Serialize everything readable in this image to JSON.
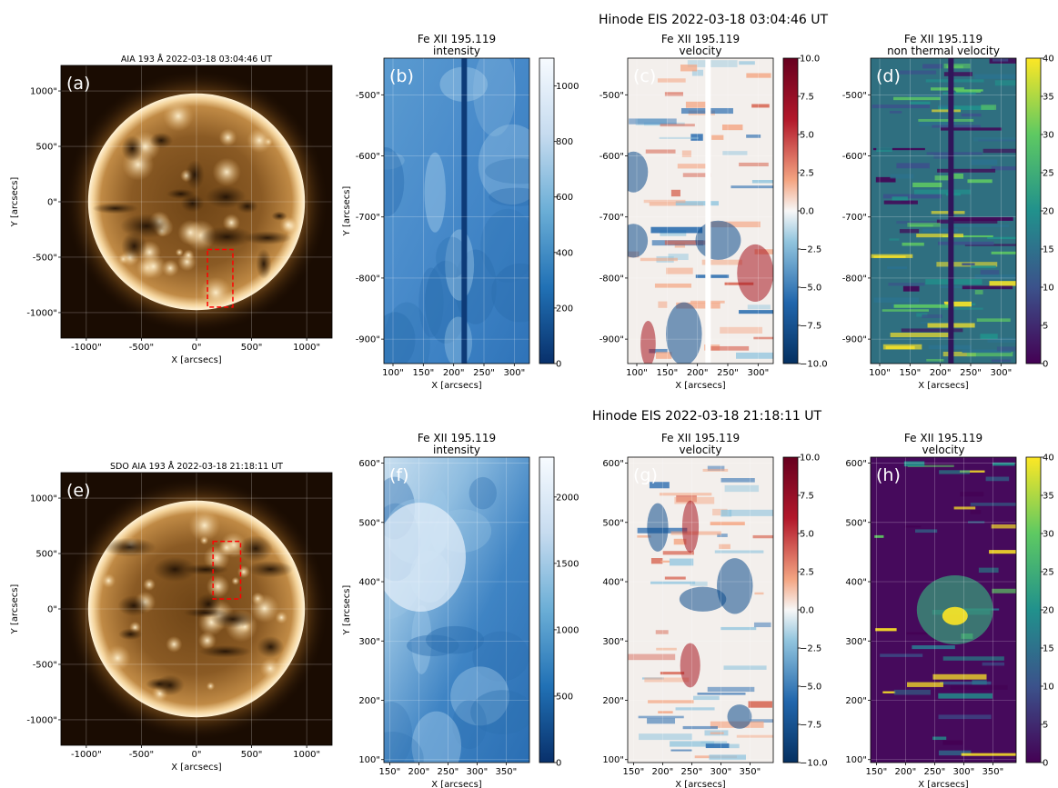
{
  "row_titles": [
    "Hinode EIS 2022-03-18 03:04:46 UT",
    "Hinode EIS 2022-03-18 21:18:11 UT"
  ],
  "colors": {
    "aia_dark": "#1a0c02",
    "aia_mid": "#7a4f1e",
    "aia_bright": "#f6d9a4",
    "box_red": "#ff0000",
    "blues_dark": "#08306b",
    "blues_light": "#f7fbff",
    "rdbu_neg": "#053061",
    "rdbu_pos": "#67001f",
    "viridis_low": "#440154",
    "viridis_high": "#fde725"
  },
  "chart_data": [
    {
      "type": "heatmap",
      "panel_label": "(a)",
      "title": "AIA 193 Å 2022-03-18 03:04:46 UT",
      "subtitle": "",
      "xlabel": "X [arcsecs]",
      "ylabel": "Y [arcsecs]",
      "xlim": [
        -1230,
        1230
      ],
      "ylim": [
        -1230,
        1230
      ],
      "x_ticks": [
        -1000,
        -500,
        0,
        500,
        1000
      ],
      "y_ticks": [
        1000,
        500,
        0,
        -500,
        -1000
      ],
      "x_tick_labels": [
        "-1000\"",
        "-500\"",
        "0\"",
        "500\"",
        "1000\""
      ],
      "y_tick_labels": [
        "1000\"",
        "500\"",
        "0\"",
        "-500\"",
        "-1000\""
      ],
      "grid": true,
      "box": {
        "x": [
          100,
          330
        ],
        "y": [
          -950,
          -430
        ]
      }
    },
    {
      "type": "heatmap",
      "panel_label": "(b)",
      "title": "Fe XII 195.119",
      "subtitle": "intensity",
      "xlabel": "X [arcsecs]",
      "ylabel": "Y [arcsecs]",
      "xlim": [
        85,
        325
      ],
      "ylim": [
        -940,
        -440
      ],
      "x_ticks": [
        100,
        150,
        200,
        250,
        300
      ],
      "y_ticks": [
        -500,
        -600,
        -700,
        -800,
        -900
      ],
      "x_tick_labels": [
        "100\"",
        "150\"",
        "200\"",
        "250\"",
        "300\""
      ],
      "y_tick_labels": [
        "-500\"",
        "-600\"",
        "-700\"",
        "-800\"",
        "-900\""
      ],
      "grid": true,
      "colorbar": {
        "cmap": "blues",
        "range": [
          0,
          1100
        ],
        "ticks": [
          0,
          200,
          400,
          600,
          800,
          1000
        ],
        "tick_labels": [
          "0",
          "200",
          "400",
          "600",
          "800",
          "1000"
        ]
      }
    },
    {
      "type": "heatmap",
      "panel_label": "(c)",
      "title": "Fe XII 195.119",
      "subtitle": "velocity",
      "xlabel": "X [arcsecs]",
      "ylabel": "",
      "xlim": [
        85,
        325
      ],
      "ylim": [
        -940,
        -440
      ],
      "x_ticks": [
        100,
        150,
        200,
        250,
        300
      ],
      "y_ticks": [
        -500,
        -600,
        -700,
        -800,
        -900
      ],
      "x_tick_labels": [
        "100\"",
        "150\"",
        "200\"",
        "250\"",
        "300\""
      ],
      "y_tick_labels": [
        "-500\"",
        "-600\"",
        "-700\"",
        "-800\"",
        "-900\""
      ],
      "grid": true,
      "colorbar": {
        "cmap": "rdbu",
        "range": [
          -10,
          10
        ],
        "ticks": [
          10,
          7.5,
          5,
          2.5,
          0,
          -2.5,
          -5,
          -7.5,
          -10
        ],
        "tick_labels": [
          "10.0",
          "7.5",
          "5.0",
          "2.5",
          "0.0",
          "−2.5",
          "−5.0",
          "−7.5",
          "−10.0"
        ]
      }
    },
    {
      "type": "heatmap",
      "panel_label": "(d)",
      "title": "Fe XII 195.119",
      "subtitle": "non thermal velocity",
      "xlabel": "X [arcsecs]",
      "ylabel": "",
      "xlim": [
        85,
        325
      ],
      "ylim": [
        -940,
        -440
      ],
      "x_ticks": [
        100,
        150,
        200,
        250,
        300
      ],
      "y_ticks": [
        -500,
        -600,
        -700,
        -800,
        -900
      ],
      "x_tick_labels": [
        "100\"",
        "150\"",
        "200\"",
        "250\"",
        "300\""
      ],
      "y_tick_labels": [
        "-500\"",
        "-600\"",
        "-700\"",
        "-800\"",
        "-900\""
      ],
      "grid": true,
      "colorbar": {
        "cmap": "viridis",
        "range": [
          0,
          40
        ],
        "ticks": [
          0,
          5,
          10,
          15,
          20,
          25,
          30,
          35,
          40
        ],
        "tick_labels": [
          "0",
          "5",
          "10",
          "15",
          "20",
          "25",
          "30",
          "35",
          "40"
        ]
      }
    },
    {
      "type": "heatmap",
      "panel_label": "(e)",
      "title": "SDO AIA 193 Å 2022-03-18 21:18:11 UT",
      "subtitle": "",
      "xlabel": "X [arcsecs]",
      "ylabel": "Y [arcsecs]",
      "xlim": [
        -1230,
        1230
      ],
      "ylim": [
        -1230,
        1230
      ],
      "x_ticks": [
        -1000,
        -500,
        0,
        500,
        1000
      ],
      "y_ticks": [
        1000,
        500,
        0,
        -500,
        -1000
      ],
      "x_tick_labels": [
        "-1000\"",
        "-500\"",
        "0\"",
        "500\"",
        "1000\""
      ],
      "y_tick_labels": [
        "1000\"",
        "500\"",
        "0\"",
        "-500\"",
        "-1000\""
      ],
      "grid": true,
      "box": {
        "x": [
          150,
          400
        ],
        "y": [
          90,
          610
        ]
      }
    },
    {
      "type": "heatmap",
      "panel_label": "(f)",
      "title": "Fe XII 195.119",
      "subtitle": "intensity",
      "xlabel": "X [arcsecs]",
      "ylabel": "Y [arcsecs]",
      "xlim": [
        140,
        390
      ],
      "ylim": [
        95,
        610
      ],
      "x_ticks": [
        150,
        200,
        250,
        300,
        350
      ],
      "y_ticks": [
        600,
        500,
        400,
        300,
        200,
        100
      ],
      "x_tick_labels": [
        "150\"",
        "200\"",
        "250\"",
        "300\"",
        "350\""
      ],
      "y_tick_labels": [
        "600\"",
        "500\"",
        "400\"",
        "300\"",
        "200\"",
        "100\""
      ],
      "grid": true,
      "colorbar": {
        "cmap": "blues",
        "range": [
          0,
          2300
        ],
        "ticks": [
          0,
          500,
          1000,
          1500,
          2000
        ],
        "tick_labels": [
          "0",
          "500",
          "1000",
          "1500",
          "2000"
        ]
      }
    },
    {
      "type": "heatmap",
      "panel_label": "(g)",
      "title": "Fe XII 195.119",
      "subtitle": "velocity",
      "xlabel": "X [arcsecs]",
      "ylabel": "",
      "xlim": [
        140,
        390
      ],
      "ylim": [
        95,
        610
      ],
      "x_ticks": [
        150,
        200,
        250,
        300,
        350
      ],
      "y_ticks": [
        600,
        500,
        400,
        300,
        200,
        100
      ],
      "x_tick_labels": [
        "150\"",
        "200\"",
        "250\"",
        "300\"",
        "350\""
      ],
      "y_tick_labels": [
        "600\"",
        "500\"",
        "400\"",
        "300\"",
        "200\"",
        "100\""
      ],
      "grid": true,
      "colorbar": {
        "cmap": "rdbu",
        "range": [
          -10,
          10
        ],
        "ticks": [
          10,
          7.5,
          5,
          2.5,
          0,
          -2.5,
          -5,
          -7.5,
          -10
        ],
        "tick_labels": [
          "10.0",
          "7.5",
          "5.0",
          "2.5",
          "0.0",
          "−2.5",
          "−5.0",
          "−7.5",
          "−10.0"
        ]
      }
    },
    {
      "type": "heatmap",
      "panel_label": "(h)",
      "title": "Fe XII 195.119",
      "subtitle": "velocity",
      "xlabel": "X [arcsecs]",
      "ylabel": "",
      "xlim": [
        140,
        390
      ],
      "ylim": [
        95,
        610
      ],
      "x_ticks": [
        150,
        200,
        250,
        300,
        350
      ],
      "y_ticks": [
        600,
        500,
        400,
        300,
        200,
        100
      ],
      "x_tick_labels": [
        "150\"",
        "200\"",
        "250\"",
        "300\"",
        "350\""
      ],
      "y_tick_labels": [
        "600\"",
        "500\"",
        "400\"",
        "300\"",
        "200\"",
        "100\""
      ],
      "grid": true,
      "colorbar": {
        "cmap": "viridis",
        "range": [
          0,
          40
        ],
        "ticks": [
          0,
          5,
          10,
          15,
          20,
          25,
          30,
          35,
          40
        ],
        "tick_labels": [
          "0",
          "5",
          "10",
          "15",
          "20",
          "25",
          "30",
          "35",
          "40"
        ]
      }
    }
  ]
}
